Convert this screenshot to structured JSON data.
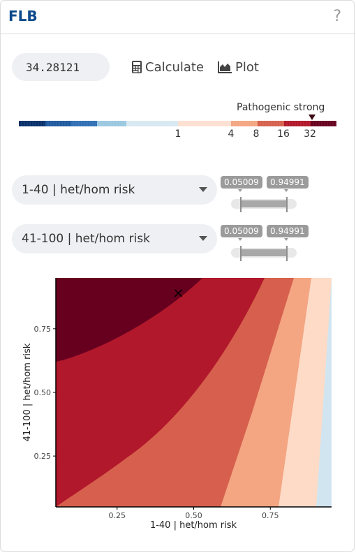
{
  "header": {
    "title": "FLB",
    "help_icon": "question-icon"
  },
  "calc": {
    "input_value": "34.28121",
    "calculate_label": "Calculate",
    "calculate_icon": "calculator-icon",
    "plot_label": "Plot",
    "plot_icon": "area-chart-icon"
  },
  "scale": {
    "classification": "Pathogenic strong",
    "marker_value": 34.28121,
    "ticks": [
      "1",
      "4",
      "8",
      "16",
      "32"
    ],
    "colors": {
      "benign_dark": "#08306b",
      "benign_mid": "#2f6fb5",
      "benign_light": "#9ac8e0",
      "neutral_blue": "#d7e8f2",
      "neutral_pink": "#fde0d2",
      "path_light": "#f4a582",
      "path_mid": "#d6604d",
      "path_strong": "#b2182b",
      "path_dark": "#67001f"
    }
  },
  "selectors": [
    {
      "label": "1-40 | het/hom risk",
      "range_min": "0.05009",
      "range_max": "0.94991"
    },
    {
      "label": "41-100 | het/hom risk",
      "range_min": "0.05009",
      "range_max": "0.94991"
    }
  ],
  "chart_data": {
    "type": "heatmap",
    "xlabel": "1-40 | het/hom risk",
    "ylabel": "41-100 | het/hom risk",
    "xlim": [
      0.05009,
      0.94991
    ],
    "ylim": [
      0.05009,
      0.94991
    ],
    "x_ticks": [
      "0.25",
      "0.50",
      "0.75"
    ],
    "y_ticks": [
      "0.25",
      "0.50",
      "0.75"
    ],
    "current_point": {
      "x": 0.45,
      "y": 0.89
    },
    "regions": [
      {
        "level": "pathogenic_very_strong",
        "color": "#67001f"
      },
      {
        "level": "pathogenic_strong",
        "color": "#b2182b"
      },
      {
        "level": "pathogenic_moderate",
        "color": "#d6604d"
      },
      {
        "level": "pathogenic_supporting",
        "color": "#f4a582"
      },
      {
        "level": "uncertain_high",
        "color": "#fddbc7"
      },
      {
        "level": "uncertain_low",
        "color": "#d1e5f0"
      }
    ]
  }
}
